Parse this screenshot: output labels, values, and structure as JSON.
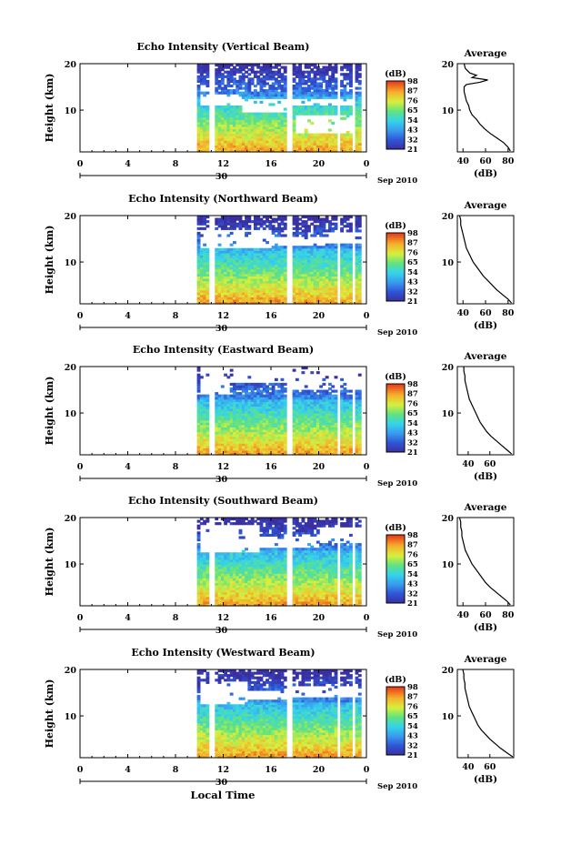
{
  "figure": {
    "xlabel": "Local Time",
    "date_label": "Sep 2010",
    "day_label": "30",
    "ylabel": "Height (km)",
    "colorbar_unit": "(dB)",
    "avg_title": "Average",
    "avg_xlabel": "(dB)"
  },
  "chart_data": [
    {
      "type": "heatmap",
      "title": "Echo Intensity (Vertical Beam)",
      "x_ticks": [
        "0",
        "4",
        "8",
        "12",
        "16",
        "20",
        "0"
      ],
      "xlim": [
        0,
        24
      ],
      "y_ticks": [
        "10",
        "20"
      ],
      "ylim": [
        1,
        20
      ],
      "colorbar_ticks": [
        "21",
        "32",
        "43",
        "54",
        "65",
        "76",
        "87",
        "98"
      ],
      "colorbar_range": [
        21,
        98
      ],
      "data_start_hour": 9.8,
      "gaps_hours": [
        [
          10.9,
          11.3
        ],
        [
          17.3,
          17.7
        ],
        [
          21.6,
          21.9
        ],
        [
          22.7,
          23.1
        ],
        [
          23.6,
          24
        ]
      ],
      "white_patches": [
        [
          10,
          13.5,
          13.5,
          11.0
        ],
        [
          13.5,
          17.3,
          12.5,
          9.5
        ],
        [
          17.7,
          22.7,
          12.5,
          11.0
        ],
        [
          18.0,
          22.7,
          9.0,
          5.0
        ],
        [
          10,
          11.2,
          15.5,
          14.0
        ]
      ],
      "average": {
        "xticks": [
          "40",
          "60",
          "80"
        ],
        "xlim": [
          35,
          85
        ],
        "height_km": [
          1.2,
          2,
          3,
          4,
          5,
          6,
          7,
          8,
          9,
          10,
          11,
          12,
          13,
          14,
          15,
          15.5,
          16,
          16.5,
          17,
          17.5,
          18,
          18.5,
          19,
          20
        ],
        "db": [
          82,
          80,
          76,
          70,
          64,
          59,
          55,
          52,
          48,
          46,
          45,
          43,
          42,
          41,
          41,
          43,
          55,
          62,
          48,
          52,
          46,
          44,
          42,
          41
        ]
      }
    },
    {
      "type": "heatmap",
      "title": "Echo Intensity (Northward Beam)",
      "x_ticks": [
        "0",
        "4",
        "8",
        "12",
        "16",
        "20",
        "0"
      ],
      "xlim": [
        0,
        24
      ],
      "y_ticks": [
        "10",
        "20"
      ],
      "ylim": [
        1,
        20
      ],
      "colorbar_ticks": [
        "21",
        "32",
        "43",
        "54",
        "65",
        "76",
        "87",
        "98"
      ],
      "colorbar_range": [
        21,
        98
      ],
      "data_start_hour": 9.8,
      "gaps_hours": [
        [
          10.9,
          11.3
        ],
        [
          17.3,
          17.7
        ],
        [
          21.6,
          21.9
        ],
        [
          22.7,
          23.1
        ],
        [
          23.6,
          24
        ]
      ],
      "white_patches": [
        [
          10,
          16,
          17.0,
          13.0
        ],
        [
          16,
          20.5,
          15.5,
          13.5
        ],
        [
          20.5,
          24,
          16.5,
          14.0
        ]
      ],
      "average": {
        "xticks": [
          "40",
          "60",
          "80"
        ],
        "xlim": [
          35,
          85
        ],
        "height_km": [
          1.2,
          2,
          3,
          4,
          5,
          6,
          7,
          8,
          9,
          10,
          11,
          12,
          13,
          14,
          15,
          16,
          17,
          18,
          19,
          20
        ],
        "db": [
          83,
          80,
          75,
          70,
          66,
          62,
          58,
          55,
          52,
          49,
          47,
          45,
          43,
          42,
          41,
          40,
          39,
          38,
          38,
          37
        ]
      }
    },
    {
      "type": "heatmap",
      "title": "Echo Intensity (Eastward Beam)",
      "x_ticks": [
        "0",
        "4",
        "8",
        "12",
        "16",
        "20",
        "0"
      ],
      "xlim": [
        0,
        24
      ],
      "y_ticks": [
        "10",
        "20"
      ],
      "ylim": [
        1,
        20
      ],
      "colorbar_ticks": [
        "21",
        "32",
        "43",
        "54",
        "65",
        "76",
        "87",
        "98"
      ],
      "colorbar_range": [
        21,
        98
      ],
      "data_start_hour": 9.8,
      "gaps_hours": [
        [
          10.9,
          11.3
        ],
        [
          17.3,
          17.7
        ],
        [
          21.6,
          21.9
        ],
        [
          22.7,
          23.1
        ],
        [
          23.6,
          24
        ]
      ],
      "white_patches": [
        [
          10,
          12.5,
          20,
          14.0
        ],
        [
          12.5,
          17.3,
          20,
          16.5
        ],
        [
          17.7,
          24,
          20,
          15.0
        ]
      ],
      "average": {
        "xticks": [
          "40",
          "60"
        ],
        "xlim": [
          30,
          82
        ],
        "height_km": [
          1.2,
          2,
          3,
          4,
          5,
          6,
          7,
          8,
          9,
          10,
          11,
          12,
          13,
          14,
          15,
          16,
          17,
          18,
          19,
          20
        ],
        "db": [
          80,
          76,
          71,
          66,
          61,
          57,
          54,
          51,
          49,
          47,
          45,
          43,
          41,
          40,
          39,
          38,
          37,
          37,
          36,
          36
        ]
      }
    },
    {
      "type": "heatmap",
      "title": "Echo Intensity (Southward Beam)",
      "x_ticks": [
        "0",
        "4",
        "8",
        "12",
        "16",
        "20",
        "0"
      ],
      "xlim": [
        0,
        24
      ],
      "y_ticks": [
        "10",
        "20"
      ],
      "ylim": [
        1,
        20
      ],
      "colorbar_ticks": [
        "21",
        "32",
        "43",
        "54",
        "65",
        "76",
        "87",
        "98"
      ],
      "colorbar_range": [
        21,
        98
      ],
      "data_start_hour": 9.8,
      "gaps_hours": [
        [
          10.9,
          11.3
        ],
        [
          17.3,
          17.7
        ],
        [
          21.6,
          21.9
        ],
        [
          22.7,
          23.1
        ],
        [
          23.6,
          24
        ]
      ],
      "white_patches": [
        [
          10,
          15,
          18.5,
          12.5
        ],
        [
          15,
          20,
          16.0,
          13.5
        ],
        [
          20,
          24,
          18.0,
          14.5
        ]
      ],
      "average": {
        "xticks": [
          "40",
          "60",
          "80"
        ],
        "xlim": [
          35,
          85
        ],
        "height_km": [
          1.2,
          2,
          3,
          4,
          5,
          6,
          7,
          8,
          9,
          10,
          11,
          12,
          13,
          14,
          15,
          16,
          17,
          18,
          19,
          20
        ],
        "db": [
          82,
          79,
          74,
          69,
          64,
          60,
          57,
          54,
          51,
          48,
          46,
          44,
          42,
          41,
          40,
          39,
          39,
          38,
          38,
          37
        ]
      }
    },
    {
      "type": "heatmap",
      "title": "Echo Intensity (Westward Beam)",
      "x_ticks": [
        "0",
        "4",
        "8",
        "12",
        "16",
        "20",
        "0"
      ],
      "xlim": [
        0,
        24
      ],
      "y_ticks": [
        "10",
        "20"
      ],
      "ylim": [
        1,
        20
      ],
      "colorbar_ticks": [
        "21",
        "32",
        "43",
        "54",
        "65",
        "76",
        "87",
        "98"
      ],
      "colorbar_range": [
        21,
        98
      ],
      "data_start_hour": 9.8,
      "gaps_hours": [
        [
          10.9,
          11.3
        ],
        [
          17.3,
          17.7
        ],
        [
          21.6,
          21.9
        ],
        [
          22.7,
          23.1
        ],
        [
          23.6,
          24
        ]
      ],
      "white_patches": [
        [
          10,
          14,
          17.5,
          12.5
        ],
        [
          14,
          17.3,
          15.5,
          13.5
        ],
        [
          17.7,
          24,
          16.5,
          14.0
        ]
      ],
      "average": {
        "xticks": [
          "40",
          "60"
        ],
        "xlim": [
          30,
          82
        ],
        "height_km": [
          1.2,
          2,
          3,
          4,
          5,
          6,
          7,
          8,
          9,
          10,
          11,
          12,
          13,
          14,
          15,
          16,
          17,
          18,
          19,
          20
        ],
        "db": [
          81,
          76,
          70,
          65,
          60,
          56,
          52,
          49,
          47,
          45,
          43,
          41,
          40,
          39,
          38,
          37,
          37,
          36,
          36,
          35
        ]
      }
    }
  ]
}
